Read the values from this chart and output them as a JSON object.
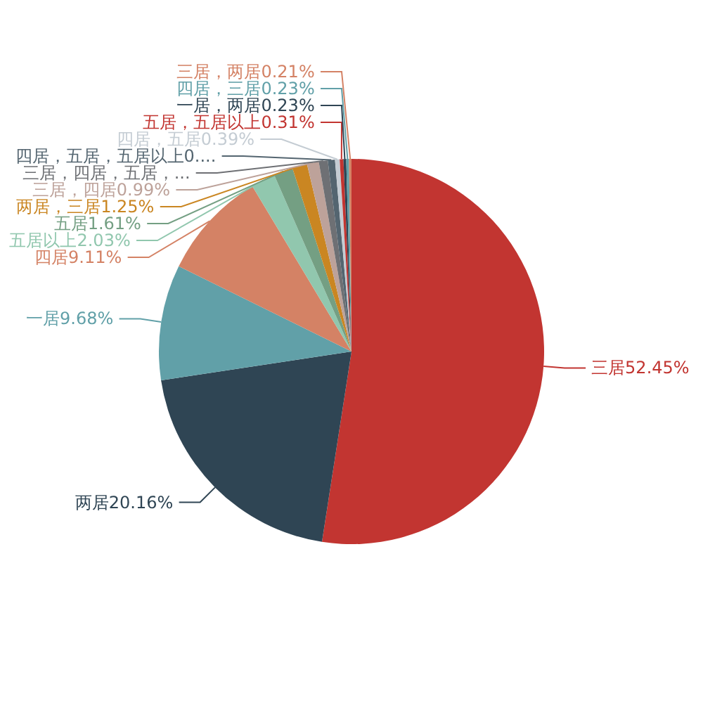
{
  "chart_data": {
    "type": "pie",
    "categories": [
      "三居",
      "两居",
      "一居",
      "四居",
      "五居以上",
      "五居",
      "两居，三居",
      "三居，四居",
      "三居，四居，五居，...",
      "四居，五居，五居以上0....",
      "四居，五居",
      "五居，五居以上",
      "一居，两居",
      "四居，三居",
      "三居，两居"
    ],
    "values": [
      52.45,
      20.16,
      9.68,
      9.11,
      2.03,
      1.61,
      1.25,
      0.99,
      0.75,
      0.6,
      0.39,
      0.31,
      0.23,
      0.23,
      0.21
    ],
    "value_labels": [
      "52.45%",
      "20.16%",
      "9.68%",
      "9.11%",
      "2.03%",
      "1.61%",
      "1.25%",
      "0.99%",
      null,
      null,
      "0.39%",
      "0.31%",
      "0.23%",
      "0.23%",
      "0.21%"
    ],
    "colors": [
      "#c23531",
      "#2f4554",
      "#61a0a8",
      "#d48265",
      "#91c7ae",
      "#749f83",
      "#ca8622",
      "#bda29a",
      "#6e7074",
      "#546570",
      "#c4ccd3",
      "#c23531",
      "#2f4554",
      "#61a0a8",
      "#d48265"
    ]
  }
}
